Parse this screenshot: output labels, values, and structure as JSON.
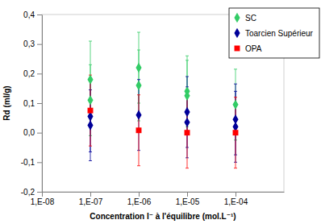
{
  "chart_data": {
    "type": "scatter",
    "x_label": "Concentration I⁻ à l'équilibre (mol.L⁻¹)",
    "y_label": "Rd (ml/g)",
    "log": "x",
    "grid": false,
    "legend": "upper right",
    "xlim": [
      1e-08,
      0.001
    ],
    "xticks": [
      {
        "value": 1e-08,
        "label": "1,E-08"
      },
      {
        "value": 1e-07,
        "label": "1,E-07"
      },
      {
        "value": 1e-06,
        "label": "1,E-06"
      },
      {
        "value": 1e-05,
        "label": "1,E-05"
      },
      {
        "value": 0.0001,
        "label": "1,E-04"
      }
    ],
    "ylim": [
      -0.2,
      0.4
    ],
    "yticks": [
      {
        "value": -0.2,
        "label": "-0,2"
      },
      {
        "value": -0.1,
        "label": "-0,1"
      },
      {
        "value": 0,
        "label": "0,0"
      },
      {
        "value": 0.1,
        "label": "0,1"
      },
      {
        "value": 0.2,
        "label": "0,2"
      },
      {
        "value": 0.3,
        "label": "0,3"
      },
      {
        "value": 0.4,
        "label": "0,4"
      }
    ],
    "series": [
      {
        "name": "SC",
        "color": "#33cc66",
        "marker": "diamond",
        "x": [
          1e-07,
          1e-07,
          1e-06,
          1e-06,
          1e-05,
          1e-05,
          0.0001
        ],
        "values": [
          0.18,
          0.11,
          0.22,
          0.16,
          0.14,
          0.125,
          0.095
        ],
        "errors": [
          0.13,
          0.12,
          0.12,
          0.12,
          0.12,
          0.12,
          0.12
        ]
      },
      {
        "name": "Toarcien Supérieur",
        "color": "#000099",
        "marker": "diamond",
        "x": [
          1e-07,
          1e-07,
          1e-06,
          1e-05,
          1e-05,
          0.0001,
          0.0001
        ],
        "values": [
          0.055,
          0.025,
          0.06,
          0.07,
          0.035,
          0.045,
          0.02
        ],
        "errors": [
          0.12,
          0.12,
          0.12,
          0.12,
          0.12,
          0.12,
          0.12
        ]
      },
      {
        "name": "OPA",
        "color": "#ff0000",
        "marker": "square",
        "x": [
          1e-07,
          1e-06,
          1e-05,
          0.0001
        ],
        "values": [
          0.075,
          0.008,
          0.0,
          0.0
        ],
        "errors": [
          0.12,
          0.12,
          0.12,
          0.12
        ]
      }
    ]
  }
}
